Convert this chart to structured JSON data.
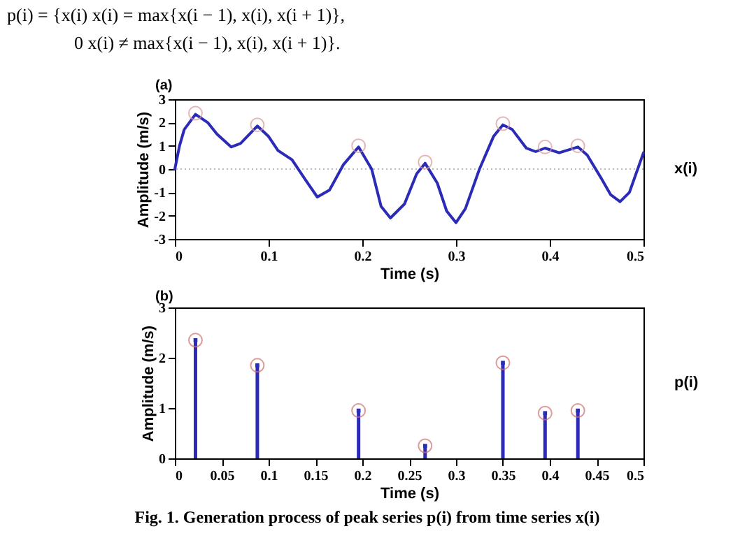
{
  "chart_data": [
    {
      "type": "line",
      "xlabel": "Time (s)",
      "ylabel": "Amplitude (m/s)",
      "annotations": [
        "p(i) = {x(i)    x(i) = max{x(i − 1), x(i), x(i + 1)},",
        "0          x(i) ≠ max{x(i − 1), x(i), x(i + 1)}.",
        "(a)"
      ],
      "xlim": [
        0,
        0.5
      ],
      "xticks": [
        0,
        0.1,
        0.2,
        0.3,
        0.4,
        0.5
      ],
      "ylim": [
        -3,
        3
      ],
      "yticks": [
        -3,
        -2,
        -1,
        0,
        1,
        2,
        3
      ],
      "grid": false,
      "legend": false,
      "ref_lines": [
        {
          "axis": "y",
          "value": 0,
          "color": "#bbbbbb",
          "line_style": "dotted"
        }
      ],
      "series": [
        {
          "name": "x(i)",
          "color": "#2b2bb8",
          "line_style": "solid",
          "marker": "none",
          "x": [
            0,
            0.005,
            0.01,
            0.022,
            0.035,
            0.045,
            0.06,
            0.07,
            0.088,
            0.1,
            0.11,
            0.125,
            0.14,
            0.152,
            0.165,
            0.18,
            0.196,
            0.21,
            0.22,
            0.23,
            0.245,
            0.258,
            0.267,
            0.28,
            0.29,
            0.3,
            0.31,
            0.325,
            0.34,
            0.35,
            0.36,
            0.375,
            0.385,
            0.395,
            0.41,
            0.43,
            0.44,
            0.455,
            0.465,
            0.475,
            0.485,
            0.5
          ],
          "values": [
            0,
            1.0,
            1.7,
            2.35,
            2.0,
            1.5,
            0.95,
            1.1,
            1.85,
            1.4,
            0.8,
            0.4,
            -0.5,
            -1.2,
            -0.9,
            0.2,
            0.95,
            0.0,
            -1.6,
            -2.1,
            -1.5,
            -0.2,
            0.25,
            -0.6,
            -1.8,
            -2.3,
            -1.7,
            0.0,
            1.4,
            1.9,
            1.7,
            0.9,
            0.75,
            0.9,
            0.7,
            0.95,
            0.6,
            -0.4,
            -1.1,
            -1.4,
            -1.0,
            0.7
          ]
        },
        {
          "type": "scatter",
          "color": "#d89a9a",
          "marker": "circle",
          "x": [
            0.022,
            0.088,
            0.196,
            0.267,
            0.35,
            0.395,
            0.43
          ],
          "values": [
            2.4,
            1.9,
            1.0,
            0.3,
            1.95,
            0.95,
            1.0
          ]
        }
      ]
    },
    {
      "type": "lollipop",
      "xlabel": "Time (s)",
      "ylabel": "Amplitude (m/s)",
      "annotations": [
        "(b)",
        "Fig. 1. Generation process of peak series p(i) from time series x(i)"
      ],
      "xlim": [
        0,
        0.5
      ],
      "xticks": [
        0,
        0.05,
        0.1,
        0.15,
        0.2,
        0.25,
        0.3,
        0.35,
        0.4,
        0.45,
        0.5
      ],
      "ylim": [
        0,
        3
      ],
      "yticks": [
        0,
        1,
        2,
        3
      ],
      "grid": false,
      "legend": false,
      "series": [
        {
          "name": "p(i)",
          "color": "#2b2bb8",
          "x": [
            0.022,
            0.088,
            0.196,
            0.267,
            0.35,
            0.395,
            0.43
          ],
          "values": [
            2.35,
            1.85,
            0.95,
            0.25,
            1.9,
            0.9,
            0.95
          ]
        },
        {
          "type": "scatter",
          "color": "#d07070",
          "marker": "circle",
          "x": [
            0.022,
            0.088,
            0.196,
            0.267,
            0.35,
            0.395,
            0.43
          ],
          "values": [
            2.35,
            1.85,
            0.95,
            0.25,
            1.9,
            0.9,
            0.95
          ]
        }
      ]
    }
  ]
}
